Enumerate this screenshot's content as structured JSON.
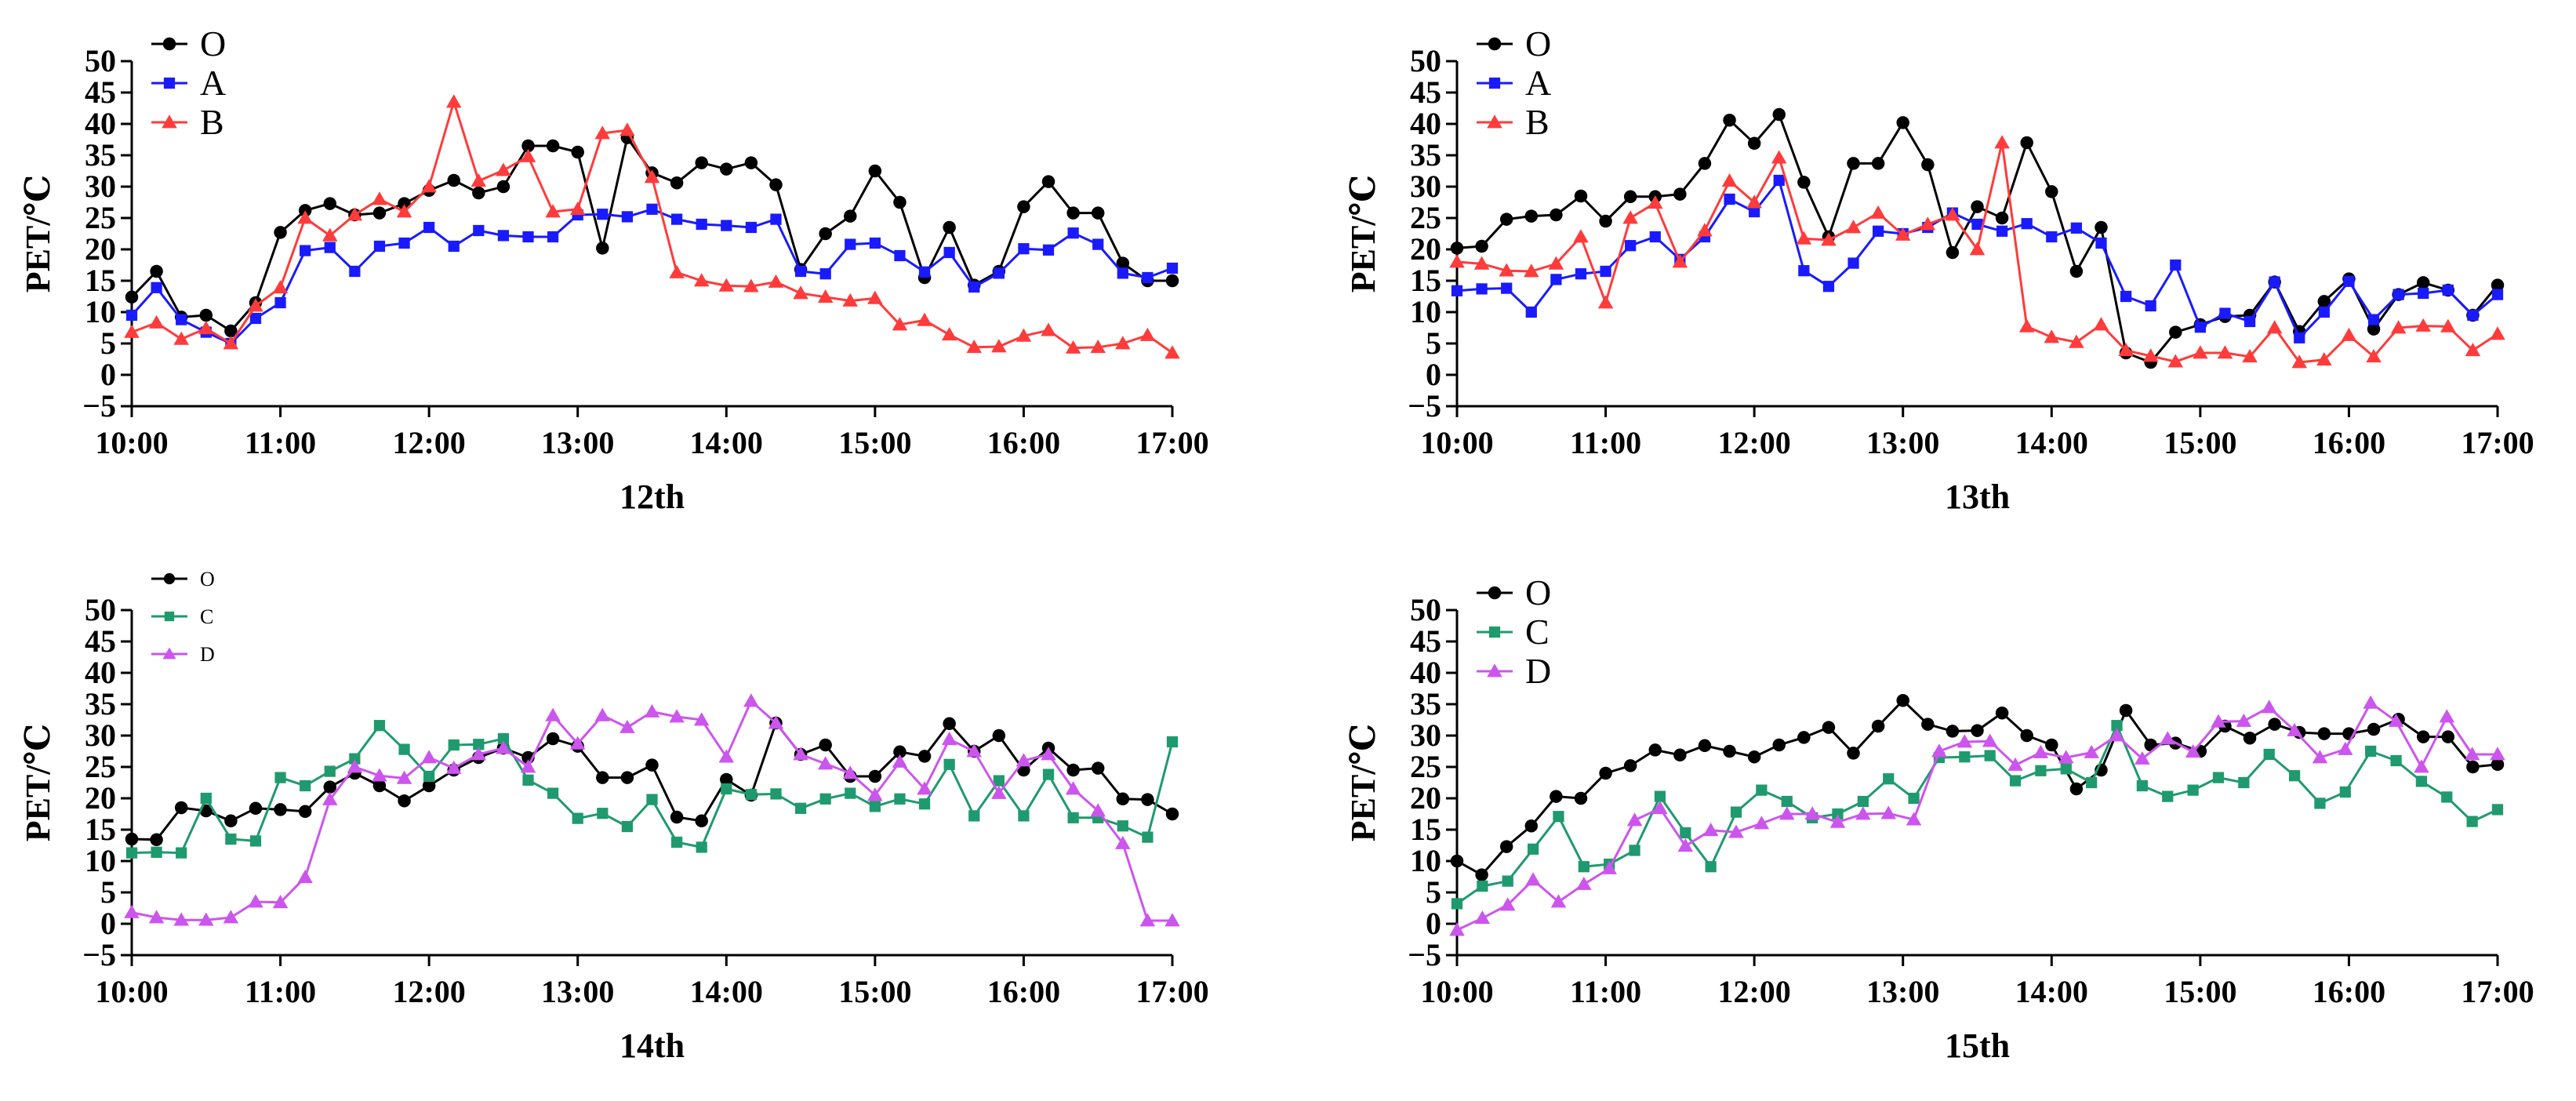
{
  "figure": {
    "domain": "chart",
    "panel_count": 4
  },
  "chart_data": [
    {
      "type": "line",
      "title": "12th",
      "xlabel": "12th",
      "ylabel": "PET/℃",
      "ylim": [
        -5,
        50
      ],
      "yticks": [
        "50",
        "45",
        "40",
        "35",
        "30",
        "25",
        "20",
        "15",
        "10",
        "5",
        "0",
        "−5"
      ],
      "xlim": [
        0,
        7
      ],
      "xticks": [
        "10:00",
        "11:00",
        "12:00",
        "13:00",
        "14:00",
        "15:00",
        "16:00",
        "17:00"
      ],
      "legend_position": "top-left",
      "legend_size": "large",
      "series": [
        {
          "name": "O",
          "color": "#000000",
          "marker": "circle",
          "values": [
            12.4,
            16.5,
            9.2,
            9.5,
            7.0,
            11.5,
            22.7,
            26.2,
            27.3,
            25.5,
            25.8,
            27.3,
            29.4,
            31.0,
            29.0,
            30.0,
            36.5,
            36.5,
            35.5,
            20.2,
            37.8,
            32.2,
            30.6,
            33.8,
            32.8,
            33.8,
            30.3,
            16.8,
            22.5,
            25.3,
            32.5,
            27.5,
            15.5,
            23.5,
            14.3,
            16.5,
            26.8,
            30.8,
            25.8,
            25.8,
            17.8,
            15.0,
            15.0
          ]
        },
        {
          "name": "A",
          "color": "#1a1aff",
          "marker": "square",
          "values": [
            9.5,
            13.9,
            8.8,
            6.8,
            5.0,
            9.0,
            11.5,
            19.8,
            20.3,
            16.5,
            20.5,
            21.0,
            23.5,
            20.5,
            23.0,
            22.2,
            22.0,
            22.0,
            25.5,
            25.6,
            25.2,
            26.4,
            24.8,
            24.0,
            23.8,
            23.5,
            24.8,
            16.5,
            16.1,
            20.8,
            21.0,
            19.0,
            16.4,
            19.5,
            14.0,
            16.2,
            20.1,
            19.9,
            22.6,
            20.8,
            16.2,
            15.5,
            17.0
          ]
        },
        {
          "name": "B",
          "color": "#ff3b3b",
          "marker": "triangle",
          "values": [
            6.8,
            8.3,
            5.7,
            7.4,
            5.0,
            11.0,
            13.9,
            25.0,
            22.2,
            25.5,
            28.0,
            26.0,
            30.0,
            43.5,
            30.9,
            32.6,
            34.8,
            26.0,
            26.4,
            38.5,
            39.0,
            31.5,
            16.3,
            15.0,
            14.2,
            14.1,
            14.8,
            13.0,
            12.4,
            11.8,
            12.2,
            8.0,
            8.7,
            6.4,
            4.4,
            4.5,
            6.2,
            7.1,
            4.3,
            4.4,
            5.0,
            6.3,
            3.5
          ]
        }
      ]
    },
    {
      "type": "line",
      "title": "13th",
      "xlabel": "13th",
      "ylabel": "PET/℃",
      "ylim": [
        -5,
        50
      ],
      "yticks": [
        "50",
        "45",
        "40",
        "35",
        "30",
        "25",
        "20",
        "15",
        "10",
        "5",
        "0",
        "−5"
      ],
      "xlim": [
        0,
        7
      ],
      "xticks": [
        "10:00",
        "11:00",
        "12:00",
        "13:00",
        "14:00",
        "15:00",
        "16:00",
        "17:00"
      ],
      "legend_position": "top-left",
      "legend_size": "large",
      "series": [
        {
          "name": "O",
          "color": "#000000",
          "marker": "circle",
          "values": [
            20.2,
            20.5,
            24.8,
            25.3,
            25.5,
            28.5,
            24.5,
            28.4,
            28.4,
            28.8,
            33.7,
            40.6,
            36.9,
            41.5,
            30.7,
            22.0,
            33.7,
            33.7,
            40.2,
            33.5,
            19.5,
            26.8,
            25.0,
            37.0,
            29.2,
            16.5,
            23.5,
            3.5,
            2.0,
            6.8,
            8.0,
            9.3,
            9.5,
            14.8,
            6.9,
            11.7,
            15.3,
            7.3,
            12.8,
            14.7,
            13.5,
            9.5,
            14.3
          ]
        },
        {
          "name": "A",
          "color": "#1a1aff",
          "marker": "square",
          "values": [
            13.4,
            13.7,
            13.8,
            10.0,
            15.2,
            16.1,
            16.5,
            20.6,
            22.0,
            18.4,
            22.0,
            28.0,
            26.0,
            31.0,
            16.6,
            14.1,
            17.8,
            22.9,
            22.5,
            23.5,
            25.8,
            24.0,
            22.9,
            24.1,
            22.0,
            23.4,
            21.0,
            12.5,
            11.0,
            17.5,
            7.6,
            9.8,
            8.5,
            14.8,
            5.9,
            10.0,
            14.9,
            8.8,
            12.8,
            13.0,
            13.5,
            9.5,
            12.8
          ]
        },
        {
          "name": "B",
          "color": "#ff3b3b",
          "marker": "triangle",
          "values": [
            18.0,
            17.7,
            16.6,
            16.5,
            17.7,
            22.0,
            11.5,
            25.0,
            27.4,
            18.0,
            23.0,
            30.9,
            27.5,
            34.6,
            21.7,
            21.5,
            23.5,
            25.8,
            22.3,
            24.0,
            25.5,
            20.0,
            37.0,
            7.7,
            6.0,
            5.2,
            8.0,
            3.9,
            3.0,
            2.1,
            3.5,
            3.5,
            2.9,
            7.5,
            2.0,
            2.4,
            6.3,
            2.9,
            7.5,
            7.8,
            7.7,
            3.9,
            6.5
          ]
        }
      ]
    },
    {
      "type": "line",
      "title": "14th",
      "xlabel": "14th",
      "ylabel": "PET/℃",
      "ylim": [
        -5,
        50
      ],
      "yticks": [
        "50",
        "45",
        "40",
        "35",
        "30",
        "25",
        "20",
        "15",
        "10",
        "5",
        "0",
        "−5"
      ],
      "xlim": [
        0,
        7
      ],
      "xticks": [
        "10:00",
        "11:00",
        "12:00",
        "13:00",
        "14:00",
        "15:00",
        "16:00",
        "17:00"
      ],
      "legend_position": "top-left",
      "legend_size": "small",
      "series": [
        {
          "name": "O",
          "color": "#000000",
          "marker": "circle",
          "values": [
            13.5,
            13.4,
            18.5,
            18.0,
            16.4,
            18.4,
            18.2,
            17.9,
            21.8,
            24.0,
            22.0,
            19.6,
            22.0,
            24.5,
            26.5,
            28.0,
            26.5,
            29.5,
            28.3,
            23.3,
            23.3,
            25.3,
            17.0,
            16.4,
            23.0,
            20.5,
            32.0,
            27.0,
            28.5,
            23.5,
            23.5,
            27.4,
            26.7,
            31.9,
            27.5,
            30.0,
            24.5,
            28.0,
            24.5,
            24.8,
            19.9,
            19.8,
            17.5
          ]
        },
        {
          "name": "C",
          "color": "#1f9a6e",
          "marker": "square",
          "values": [
            11.3,
            11.4,
            11.3,
            20.0,
            13.5,
            13.2,
            23.3,
            22.0,
            24.3,
            26.3,
            31.6,
            27.8,
            23.5,
            28.5,
            28.6,
            29.5,
            22.9,
            20.8,
            16.8,
            17.6,
            15.5,
            19.8,
            13.0,
            12.2,
            21.5,
            20.6,
            20.7,
            18.4,
            19.9,
            20.8,
            18.7,
            19.9,
            19.1,
            25.4,
            17.2,
            22.8,
            17.2,
            23.8,
            16.9,
            16.9,
            15.6,
            13.8,
            29.0
          ]
        },
        {
          "name": "D",
          "color": "#cc55ee",
          "marker": "triangle",
          "values": [
            1.8,
            1.0,
            0.6,
            0.6,
            1.0,
            3.5,
            3.4,
            7.4,
            19.8,
            25.0,
            23.6,
            23.2,
            26.5,
            24.8,
            27.0,
            28.0,
            25.0,
            33.2,
            28.7,
            33.2,
            31.3,
            33.8,
            33.0,
            32.5,
            26.6,
            35.5,
            32.0,
            27.0,
            25.5,
            24.0,
            20.5,
            25.8,
            21.5,
            29.4,
            27.5,
            20.8,
            26.0,
            27.0,
            21.5,
            18.0,
            12.8,
            0.5,
            0.5
          ]
        }
      ]
    },
    {
      "type": "line",
      "title": "15th",
      "xlabel": "15th",
      "ylabel": "PET/℃",
      "ylim": [
        -5,
        50
      ],
      "yticks": [
        "50",
        "45",
        "40",
        "35",
        "30",
        "25",
        "20",
        "15",
        "10",
        "5",
        "0",
        "−5"
      ],
      "xlim": [
        0,
        7
      ],
      "xticks": [
        "10:00",
        "11:00",
        "12:00",
        "13:00",
        "14:00",
        "15:00",
        "16:00",
        "17:00"
      ],
      "legend_position": "top-left",
      "legend_size": "large",
      "series": [
        {
          "name": "O",
          "color": "#000000",
          "marker": "circle",
          "values": [
            10.0,
            7.8,
            12.3,
            15.6,
            20.3,
            20.0,
            24.0,
            25.2,
            27.7,
            26.9,
            28.4,
            27.5,
            26.6,
            28.5,
            29.7,
            31.3,
            27.2,
            31.5,
            35.6,
            31.8,
            30.7,
            30.8,
            33.6,
            30.0,
            28.5,
            21.5,
            24.5,
            34.0,
            28.5,
            28.8,
            27.5,
            31.5,
            29.6,
            31.8,
            30.5,
            30.3,
            30.3,
            31.0,
            32.6,
            29.8,
            29.8,
            25.0,
            25.4
          ]
        },
        {
          "name": "C",
          "color": "#1f9a6e",
          "marker": "square",
          "values": [
            3.2,
            6.0,
            6.8,
            11.9,
            17.1,
            9.1,
            9.5,
            11.7,
            20.3,
            14.5,
            9.1,
            17.8,
            21.3,
            19.5,
            16.9,
            17.5,
            19.5,
            23.1,
            20.0,
            26.5,
            26.6,
            26.8,
            22.8,
            24.4,
            24.7,
            22.5,
            31.6,
            22.0,
            20.3,
            21.3,
            23.3,
            22.5,
            27.0,
            23.6,
            19.2,
            21.0,
            27.5,
            26.0,
            22.7,
            20.2,
            16.3,
            18.2
          ]
        },
        {
          "name": "D",
          "color": "#cc55ee",
          "marker": "triangle",
          "values": [
            -1.0,
            0.9,
            3.0,
            7.0,
            3.5,
            6.3,
            8.8,
            16.5,
            18.4,
            12.4,
            14.9,
            14.6,
            16.0,
            17.5,
            17.5,
            16.2,
            17.5,
            17.6,
            16.6,
            27.5,
            29.0,
            29.1,
            25.3,
            27.3,
            26.5,
            27.3,
            30.0,
            26.3,
            29.5,
            27.4,
            32.2,
            32.3,
            34.5,
            30.8,
            26.5,
            27.8,
            35.2,
            32.3,
            25.0,
            33.0,
            27.0,
            27.0
          ]
        }
      ]
    }
  ]
}
